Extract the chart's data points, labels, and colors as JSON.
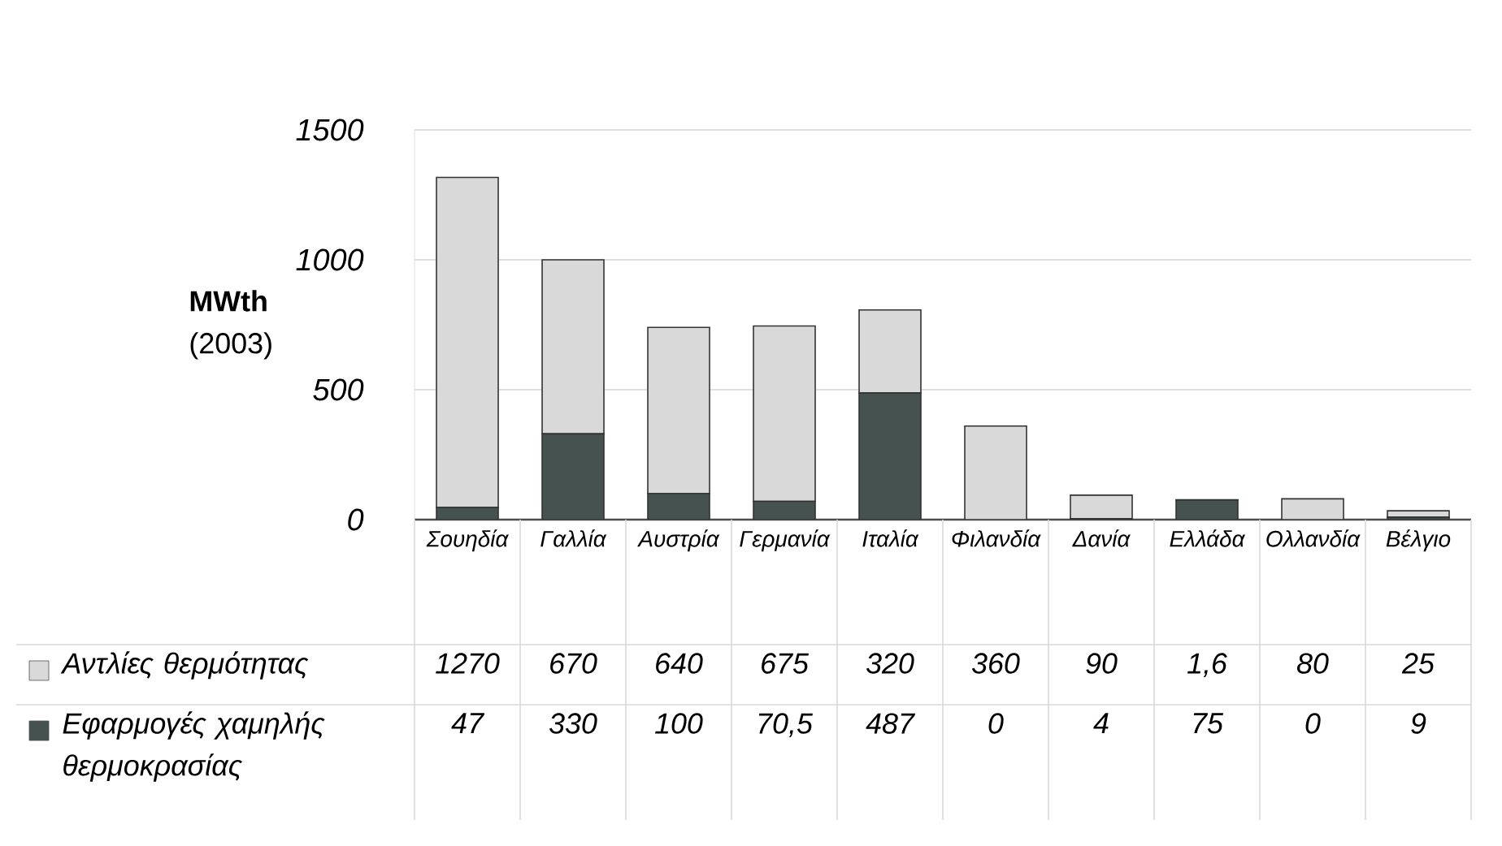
{
  "chart_data": {
    "type": "bar",
    "ylabel": "**MWth** (2003)",
    "categories": [
      "Σουηδία",
      "Γαλλία",
      "Αυστρία",
      "Γερμανία",
      "Ιταλία",
      "Φιλανδία",
      "Δανία",
      "Ελλάδα",
      "Ολλανδία",
      "Βέλγιο"
    ],
    "series": [
      {
        "name": "Εφαρμογές χαμηλής θερμοκρασίας",
        "color": "#465250",
        "values": [
          47,
          330,
          100,
          70.5,
          487,
          0,
          4,
          75,
          0,
          9
        ],
        "value_labels": [
          "47",
          "330",
          "100",
          "70,5",
          "487",
          "0",
          "4",
          "75",
          "0",
          "9"
        ]
      },
      {
        "name": "Αντλίες θερμότητας",
        "color": "#d9d9d9",
        "values": [
          1270,
          670,
          640,
          675,
          320,
          360,
          90,
          1.6,
          80,
          25
        ],
        "value_labels": [
          "1270",
          "670",
          "640",
          "675",
          "320",
          "360",
          "90",
          "1,6",
          "80",
          "25"
        ]
      }
    ],
    "stacked": true,
    "ylim": [
      0,
      1500
    ],
    "yticks": [
      0,
      500,
      1000,
      1500
    ],
    "grid": "y",
    "legend": "bottom left"
  }
}
